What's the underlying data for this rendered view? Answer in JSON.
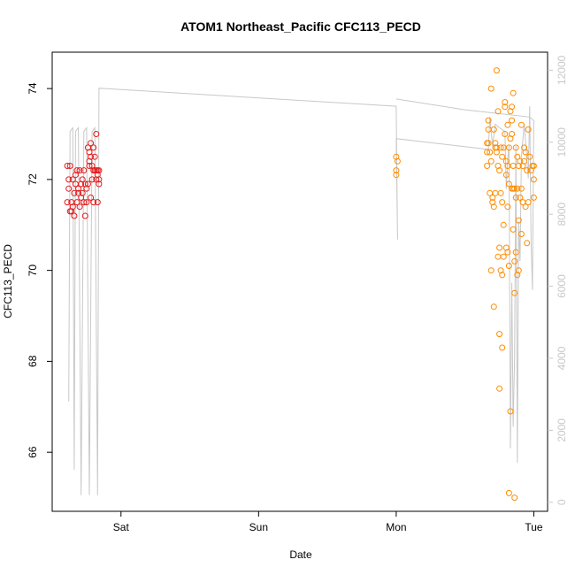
{
  "chart_data": {
    "type": "scatter",
    "title": "ATOM1 Northeast_Pacific CFC113_PECD",
    "xlabel": "Date",
    "ylabel": "CFC113_PECD",
    "x_unit": "days",
    "xlim": [
      -0.5,
      3.1
    ],
    "ylim": [
      64.7,
      74.8
    ],
    "x_ticks": [
      {
        "label": "Sat",
        "value": 0
      },
      {
        "label": "Sun",
        "value": 1
      },
      {
        "label": "Mon",
        "value": 2
      },
      {
        "label": "Tue",
        "value": 3
      }
    ],
    "y_ticks": [
      66,
      68,
      70,
      72,
      74
    ],
    "y2_ticks": [
      0,
      2000,
      4000,
      6000,
      8000,
      10000,
      12000
    ],
    "y2lim": [
      -250,
      12500
    ],
    "grid": false,
    "legend": "none",
    "colors": {
      "series_1": "#e41a1c",
      "series_2": "#ff8c00",
      "depth_line": "#c8c8c8",
      "axis": "#000000",
      "right_axis": "#c8c8c8"
    },
    "series": [
      {
        "color": "#e41a1c",
        "points": [
          [
            -0.39,
            72.3
          ],
          [
            -0.39,
            71.5
          ],
          [
            -0.38,
            72.0
          ],
          [
            -0.38,
            71.8
          ],
          [
            -0.37,
            71.3
          ],
          [
            -0.37,
            72.3
          ],
          [
            -0.36,
            71.5
          ],
          [
            -0.36,
            71.3
          ],
          [
            -0.35,
            71.4
          ],
          [
            -0.35,
            72.0
          ],
          [
            -0.34,
            71.7
          ],
          [
            -0.34,
            71.2
          ],
          [
            -0.33,
            71.9
          ],
          [
            -0.33,
            72.1
          ],
          [
            -0.32,
            72.2
          ],
          [
            -0.32,
            71.5
          ],
          [
            -0.31,
            71.8
          ],
          [
            -0.31,
            71.7
          ],
          [
            -0.3,
            72.2
          ],
          [
            -0.3,
            71.4
          ],
          [
            -0.29,
            71.6
          ],
          [
            -0.29,
            71.9
          ],
          [
            -0.28,
            71.7
          ],
          [
            -0.28,
            72.0
          ],
          [
            -0.27,
            71.5
          ],
          [
            -0.27,
            72.2
          ],
          [
            -0.26,
            71.9
          ],
          [
            -0.26,
            71.2
          ],
          [
            -0.25,
            71.8
          ],
          [
            -0.25,
            71.5
          ],
          [
            -0.24,
            72.7
          ],
          [
            -0.24,
            71.9
          ],
          [
            -0.23,
            72.4
          ],
          [
            -0.23,
            72.3
          ],
          [
            -0.23,
            72.6
          ],
          [
            -0.22,
            72.8
          ],
          [
            -0.22,
            72.5
          ],
          [
            -0.22,
            71.6
          ],
          [
            -0.21,
            72.3
          ],
          [
            -0.21,
            72.0
          ],
          [
            -0.2,
            72.7
          ],
          [
            -0.2,
            72.2
          ],
          [
            -0.2,
            71.5
          ],
          [
            -0.19,
            72.2
          ],
          [
            -0.19,
            72.5
          ],
          [
            -0.18,
            72.2
          ],
          [
            -0.18,
            72.0
          ],
          [
            -0.18,
            73.0
          ],
          [
            -0.17,
            71.5
          ],
          [
            -0.17,
            72.1
          ],
          [
            -0.17,
            72.2
          ],
          [
            -0.16,
            72.2
          ],
          [
            -0.16,
            71.9
          ],
          [
            -0.16,
            72.0
          ]
        ]
      },
      {
        "color": "#ff8c00",
        "points": [
          [
            2.0,
            72.5
          ],
          [
            2.0,
            72.2
          ],
          [
            2.01,
            72.4
          ],
          [
            2.0,
            72.1
          ],
          [
            2.66,
            72.3
          ],
          [
            2.66,
            72.6
          ],
          [
            2.66,
            72.8
          ],
          [
            2.67,
            73.1
          ],
          [
            2.67,
            72.8
          ],
          [
            2.67,
            73.3
          ],
          [
            2.68,
            72.6
          ],
          [
            2.68,
            71.7
          ],
          [
            2.69,
            72.4
          ],
          [
            2.69,
            74.0
          ],
          [
            2.69,
            70.0
          ],
          [
            2.7,
            71.5
          ],
          [
            2.7,
            71.6
          ],
          [
            2.71,
            71.4
          ],
          [
            2.71,
            73.1
          ],
          [
            2.71,
            69.2
          ],
          [
            2.72,
            72.7
          ],
          [
            2.72,
            72.8
          ],
          [
            2.72,
            71.7
          ],
          [
            2.73,
            72.6
          ],
          [
            2.73,
            74.4
          ],
          [
            2.73,
            72.7
          ],
          [
            2.74,
            73.5
          ],
          [
            2.74,
            72.3
          ],
          [
            2.74,
            70.3
          ],
          [
            2.75,
            70.5
          ],
          [
            2.75,
            72.2
          ],
          [
            2.75,
            68.6
          ],
          [
            2.75,
            67.4
          ],
          [
            2.76,
            71.7
          ],
          [
            2.76,
            72.7
          ],
          [
            2.76,
            70.0
          ],
          [
            2.77,
            68.3
          ],
          [
            2.77,
            72.5
          ],
          [
            2.77,
            69.9
          ],
          [
            2.77,
            71.5
          ],
          [
            2.78,
            72.7
          ],
          [
            2.78,
            71.0
          ],
          [
            2.78,
            70.3
          ],
          [
            2.79,
            73.6
          ],
          [
            2.79,
            73.7
          ],
          [
            2.79,
            73.0
          ],
          [
            2.8,
            72.4
          ],
          [
            2.8,
            72.1
          ],
          [
            2.8,
            70.5
          ],
          [
            2.81,
            71.4
          ],
          [
            2.81,
            72.3
          ],
          [
            2.81,
            73.2
          ],
          [
            2.81,
            70.4
          ],
          [
            2.82,
            71.9
          ],
          [
            2.82,
            70.1
          ],
          [
            2.82,
            72.7
          ],
          [
            2.82,
            65.1
          ],
          [
            2.83,
            66.9
          ],
          [
            2.83,
            72.9
          ],
          [
            2.83,
            73.5
          ],
          [
            2.84,
            71.8
          ],
          [
            2.84,
            73.6
          ],
          [
            2.84,
            73.0
          ],
          [
            2.84,
            73.3
          ],
          [
            2.85,
            70.9
          ],
          [
            2.85,
            72.3
          ],
          [
            2.85,
            71.8
          ],
          [
            2.85,
            73.9
          ],
          [
            2.86,
            69.5
          ],
          [
            2.86,
            70.2
          ],
          [
            2.86,
            71.8
          ],
          [
            2.86,
            65.0
          ],
          [
            2.87,
            72.7
          ],
          [
            2.87,
            71.6
          ],
          [
            2.87,
            70.4
          ],
          [
            2.88,
            69.9
          ],
          [
            2.88,
            72.5
          ],
          [
            2.88,
            71.8
          ],
          [
            2.89,
            70.0
          ],
          [
            2.89,
            71.1
          ],
          [
            2.89,
            72.3
          ],
          [
            2.9,
            71.6
          ],
          [
            2.9,
            72.4
          ],
          [
            2.91,
            73.2
          ],
          [
            2.91,
            70.8
          ],
          [
            2.91,
            71.8
          ],
          [
            2.92,
            71.5
          ],
          [
            2.92,
            72.3
          ],
          [
            2.93,
            72.4
          ],
          [
            2.93,
            72.7
          ],
          [
            2.94,
            71.4
          ],
          [
            2.94,
            72.6
          ],
          [
            2.95,
            72.2
          ],
          [
            2.95,
            70.6
          ],
          [
            2.96,
            71.5
          ],
          [
            2.96,
            73.1
          ],
          [
            2.97,
            72.5
          ],
          [
            2.98,
            72.2
          ],
          [
            2.99,
            72.3
          ],
          [
            3.0,
            72.0
          ],
          [
            3.0,
            72.3
          ],
          [
            3.0,
            71.6
          ]
        ]
      }
    ],
    "depth_trace": {
      "color": "#c8c8c8",
      "points": [
        [
          -0.38,
          2800
        ],
        [
          -0.37,
          10300
        ],
        [
          -0.35,
          10400
        ],
        [
          -0.34,
          900
        ],
        [
          -0.33,
          10300
        ],
        [
          -0.31,
          10400
        ],
        [
          -0.29,
          200
        ],
        [
          -0.27,
          10300
        ],
        [
          -0.25,
          10400
        ],
        [
          -0.23,
          200
        ],
        [
          -0.21,
          10300
        ],
        [
          -0.19,
          10400
        ],
        [
          -0.17,
          200
        ],
        [
          -0.16,
          11500
        ],
        [
          2.0,
          11000
        ],
        [
          2.01,
          7300
        ],
        [
          2.0,
          10100
        ],
        [
          2.67,
          9800
        ],
        [
          2.68,
          10700
        ],
        [
          2.7,
          9900
        ],
        [
          2.72,
          10500
        ],
        [
          2.75,
          10400
        ],
        [
          2.79,
          10300
        ],
        [
          2.8,
          8700
        ],
        [
          2.81,
          9500
        ],
        [
          2.82,
          9900
        ],
        [
          2.83,
          1500
        ],
        [
          2.84,
          6100
        ],
        [
          2.85,
          2100
        ],
        [
          2.86,
          4000
        ],
        [
          2.87,
          9900
        ],
        [
          2.88,
          1100
        ],
        [
          2.89,
          7800
        ],
        [
          2.9,
          6700
        ],
        [
          2.91,
          9600
        ],
        [
          2.93,
          10500
        ],
        [
          2.96,
          9000
        ],
        [
          2.97,
          11000
        ],
        [
          2.98,
          7300
        ],
        [
          2.99,
          5900
        ],
        [
          3.0,
          10600
        ],
        [
          2.97,
          10700
        ],
        [
          2.5,
          10900
        ],
        [
          2.0,
          11200
        ]
      ]
    }
  }
}
